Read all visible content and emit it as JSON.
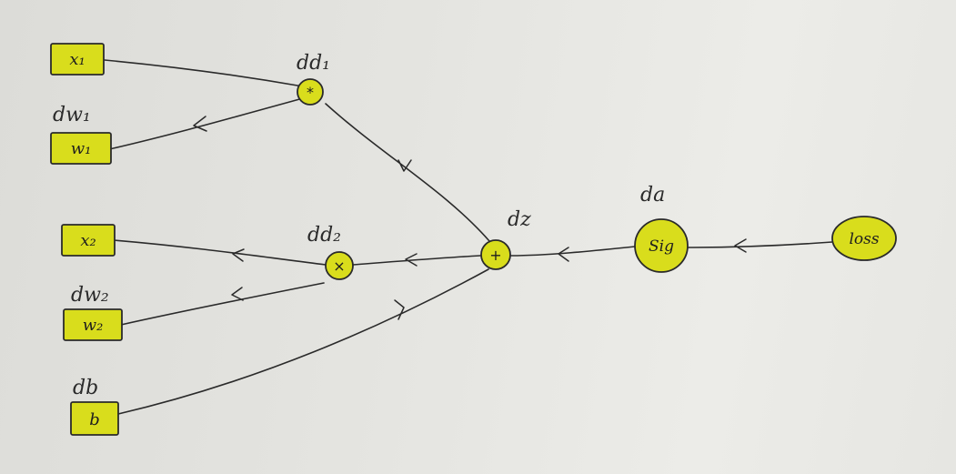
{
  "diagram": {
    "inputs": {
      "x1": "x₁",
      "w1": "w₁",
      "x2": "x₂",
      "w2": "w₂",
      "b": "b"
    },
    "operators": {
      "mul1": "*",
      "mul2": "×",
      "add": "+"
    },
    "nodes": {
      "sig": "Sig",
      "loss": "loss"
    },
    "gradient_labels": {
      "dw1": "dw₁",
      "dw2": "dw₂",
      "db": "db",
      "dd1": "dd₁",
      "dd2": "dd₂",
      "dz": "dz",
      "da": "da"
    },
    "colors": {
      "highlight": "#d9dd1c",
      "ink": "#2a2a2a"
    }
  }
}
